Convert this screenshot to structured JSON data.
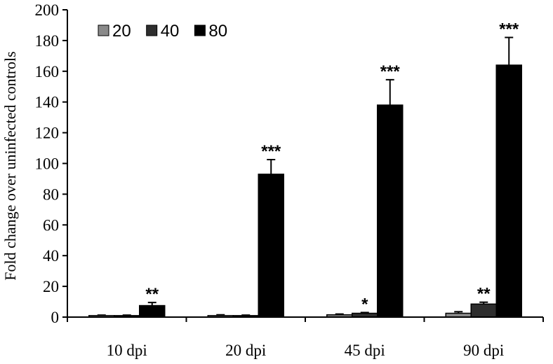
{
  "chart_data": {
    "type": "bar",
    "title": "",
    "xlabel": "",
    "ylabel": "Fold change over uninfected controls",
    "ylim": [
      0,
      200
    ],
    "yticks": [
      0,
      20,
      40,
      60,
      80,
      100,
      120,
      140,
      160,
      180,
      200
    ],
    "grid": false,
    "legend_position": "top-left",
    "categories": [
      "10 dpi",
      "20 dpi",
      "45 dpi",
      "90 dpi"
    ],
    "series": [
      {
        "name": "20",
        "color": "#8a8a8a",
        "values": [
          1,
          1,
          1.5,
          2.5
        ],
        "errors": [
          0.3,
          0.5,
          0.5,
          1
        ]
      },
      {
        "name": "40",
        "color": "#2e2e2e",
        "values": [
          1,
          1,
          2.5,
          8.5
        ],
        "errors": [
          0.3,
          0.3,
          0.5,
          1.2
        ]
      },
      {
        "name": "80",
        "color": "#000000",
        "values": [
          7.5,
          93,
          138,
          164
        ],
        "errors": [
          2,
          9.5,
          16.5,
          18
        ]
      }
    ],
    "annotations": [
      {
        "category": "10 dpi",
        "series": "80",
        "text": "**"
      },
      {
        "category": "20 dpi",
        "series": "80",
        "text": "***"
      },
      {
        "category": "45 dpi",
        "series": "40",
        "text": "*"
      },
      {
        "category": "45 dpi",
        "series": "80",
        "text": "***"
      },
      {
        "category": "90 dpi",
        "series": "40",
        "text": "**"
      },
      {
        "category": "90 dpi",
        "series": "80",
        "text": "***"
      }
    ]
  }
}
